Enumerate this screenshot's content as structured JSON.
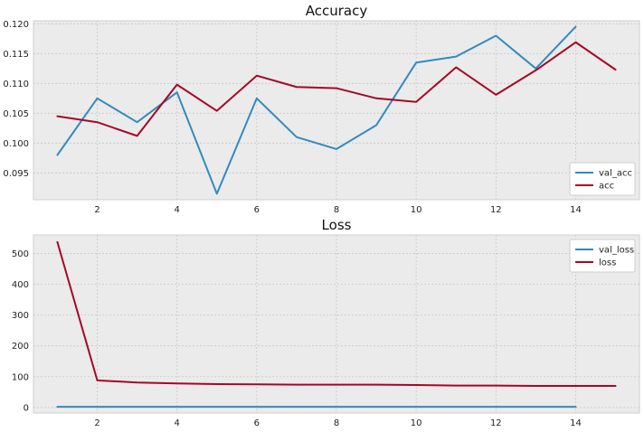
{
  "chart_data": [
    {
      "type": "line",
      "title": "Accuracy",
      "xlabel": "",
      "ylabel": "",
      "xlim": [
        0.4,
        15.6
      ],
      "ylim": [
        0.0905,
        0.1205
      ],
      "xticks": [
        2,
        4,
        6,
        8,
        10,
        12,
        14
      ],
      "yticks": [
        0.095,
        0.1,
        0.105,
        0.11,
        0.115,
        0.12
      ],
      "ytick_labels": [
        "0.095",
        "0.100",
        "0.105",
        "0.110",
        "0.115",
        "0.120"
      ],
      "grid": true,
      "legend_position": "lower-right",
      "series": [
        {
          "name": "val_acc",
          "color": "#348abd",
          "x": [
            1,
            2,
            3,
            4,
            5,
            6,
            7,
            8,
            9,
            10,
            11,
            12,
            13,
            14
          ],
          "values": [
            0.098,
            0.1075,
            0.1035,
            0.1085,
            0.0915,
            0.1075,
            0.101,
            0.099,
            0.103,
            0.1135,
            0.1145,
            0.118,
            0.1125,
            0.1195
          ]
        },
        {
          "name": "acc",
          "color": "#a60628",
          "x": [
            1,
            2,
            3,
            4,
            5,
            6,
            7,
            8,
            9,
            10,
            11,
            12,
            13,
            14,
            15
          ],
          "values": [
            0.1045,
            0.1035,
            0.1012,
            0.1098,
            0.1054,
            0.1113,
            0.1094,
            0.1092,
            0.1075,
            0.1069,
            0.1127,
            0.1081,
            0.1122,
            0.1169,
            0.1123
          ]
        }
      ]
    },
    {
      "type": "line",
      "title": "Loss",
      "xlabel": "",
      "ylabel": "",
      "xlim": [
        0.4,
        15.6
      ],
      "ylim": [
        -18,
        560
      ],
      "xticks": [
        2,
        4,
        6,
        8,
        10,
        12,
        14
      ],
      "yticks": [
        0,
        100,
        200,
        300,
        400,
        500
      ],
      "ytick_labels": [
        "0",
        "100",
        "200",
        "300",
        "400",
        "500"
      ],
      "grid": true,
      "legend_position": "upper-right",
      "series": [
        {
          "name": "val_loss",
          "color": "#348abd",
          "x": [
            1,
            2,
            3,
            4,
            5,
            6,
            7,
            8,
            9,
            10,
            11,
            12,
            13,
            14
          ],
          "values": [
            2.3,
            2.3,
            2.3,
            2.3,
            2.3,
            2.3,
            2.3,
            2.3,
            2.3,
            2.3,
            2.3,
            2.3,
            2.3,
            2.3
          ]
        },
        {
          "name": "loss",
          "color": "#a60628",
          "x": [
            1,
            2,
            3,
            4,
            5,
            6,
            7,
            8,
            9,
            10,
            11,
            12,
            13,
            14,
            15
          ],
          "values": [
            537,
            88,
            81,
            78,
            76,
            75,
            74,
            74,
            74,
            73,
            71,
            71,
            70,
            70,
            70
          ]
        }
      ]
    }
  ]
}
